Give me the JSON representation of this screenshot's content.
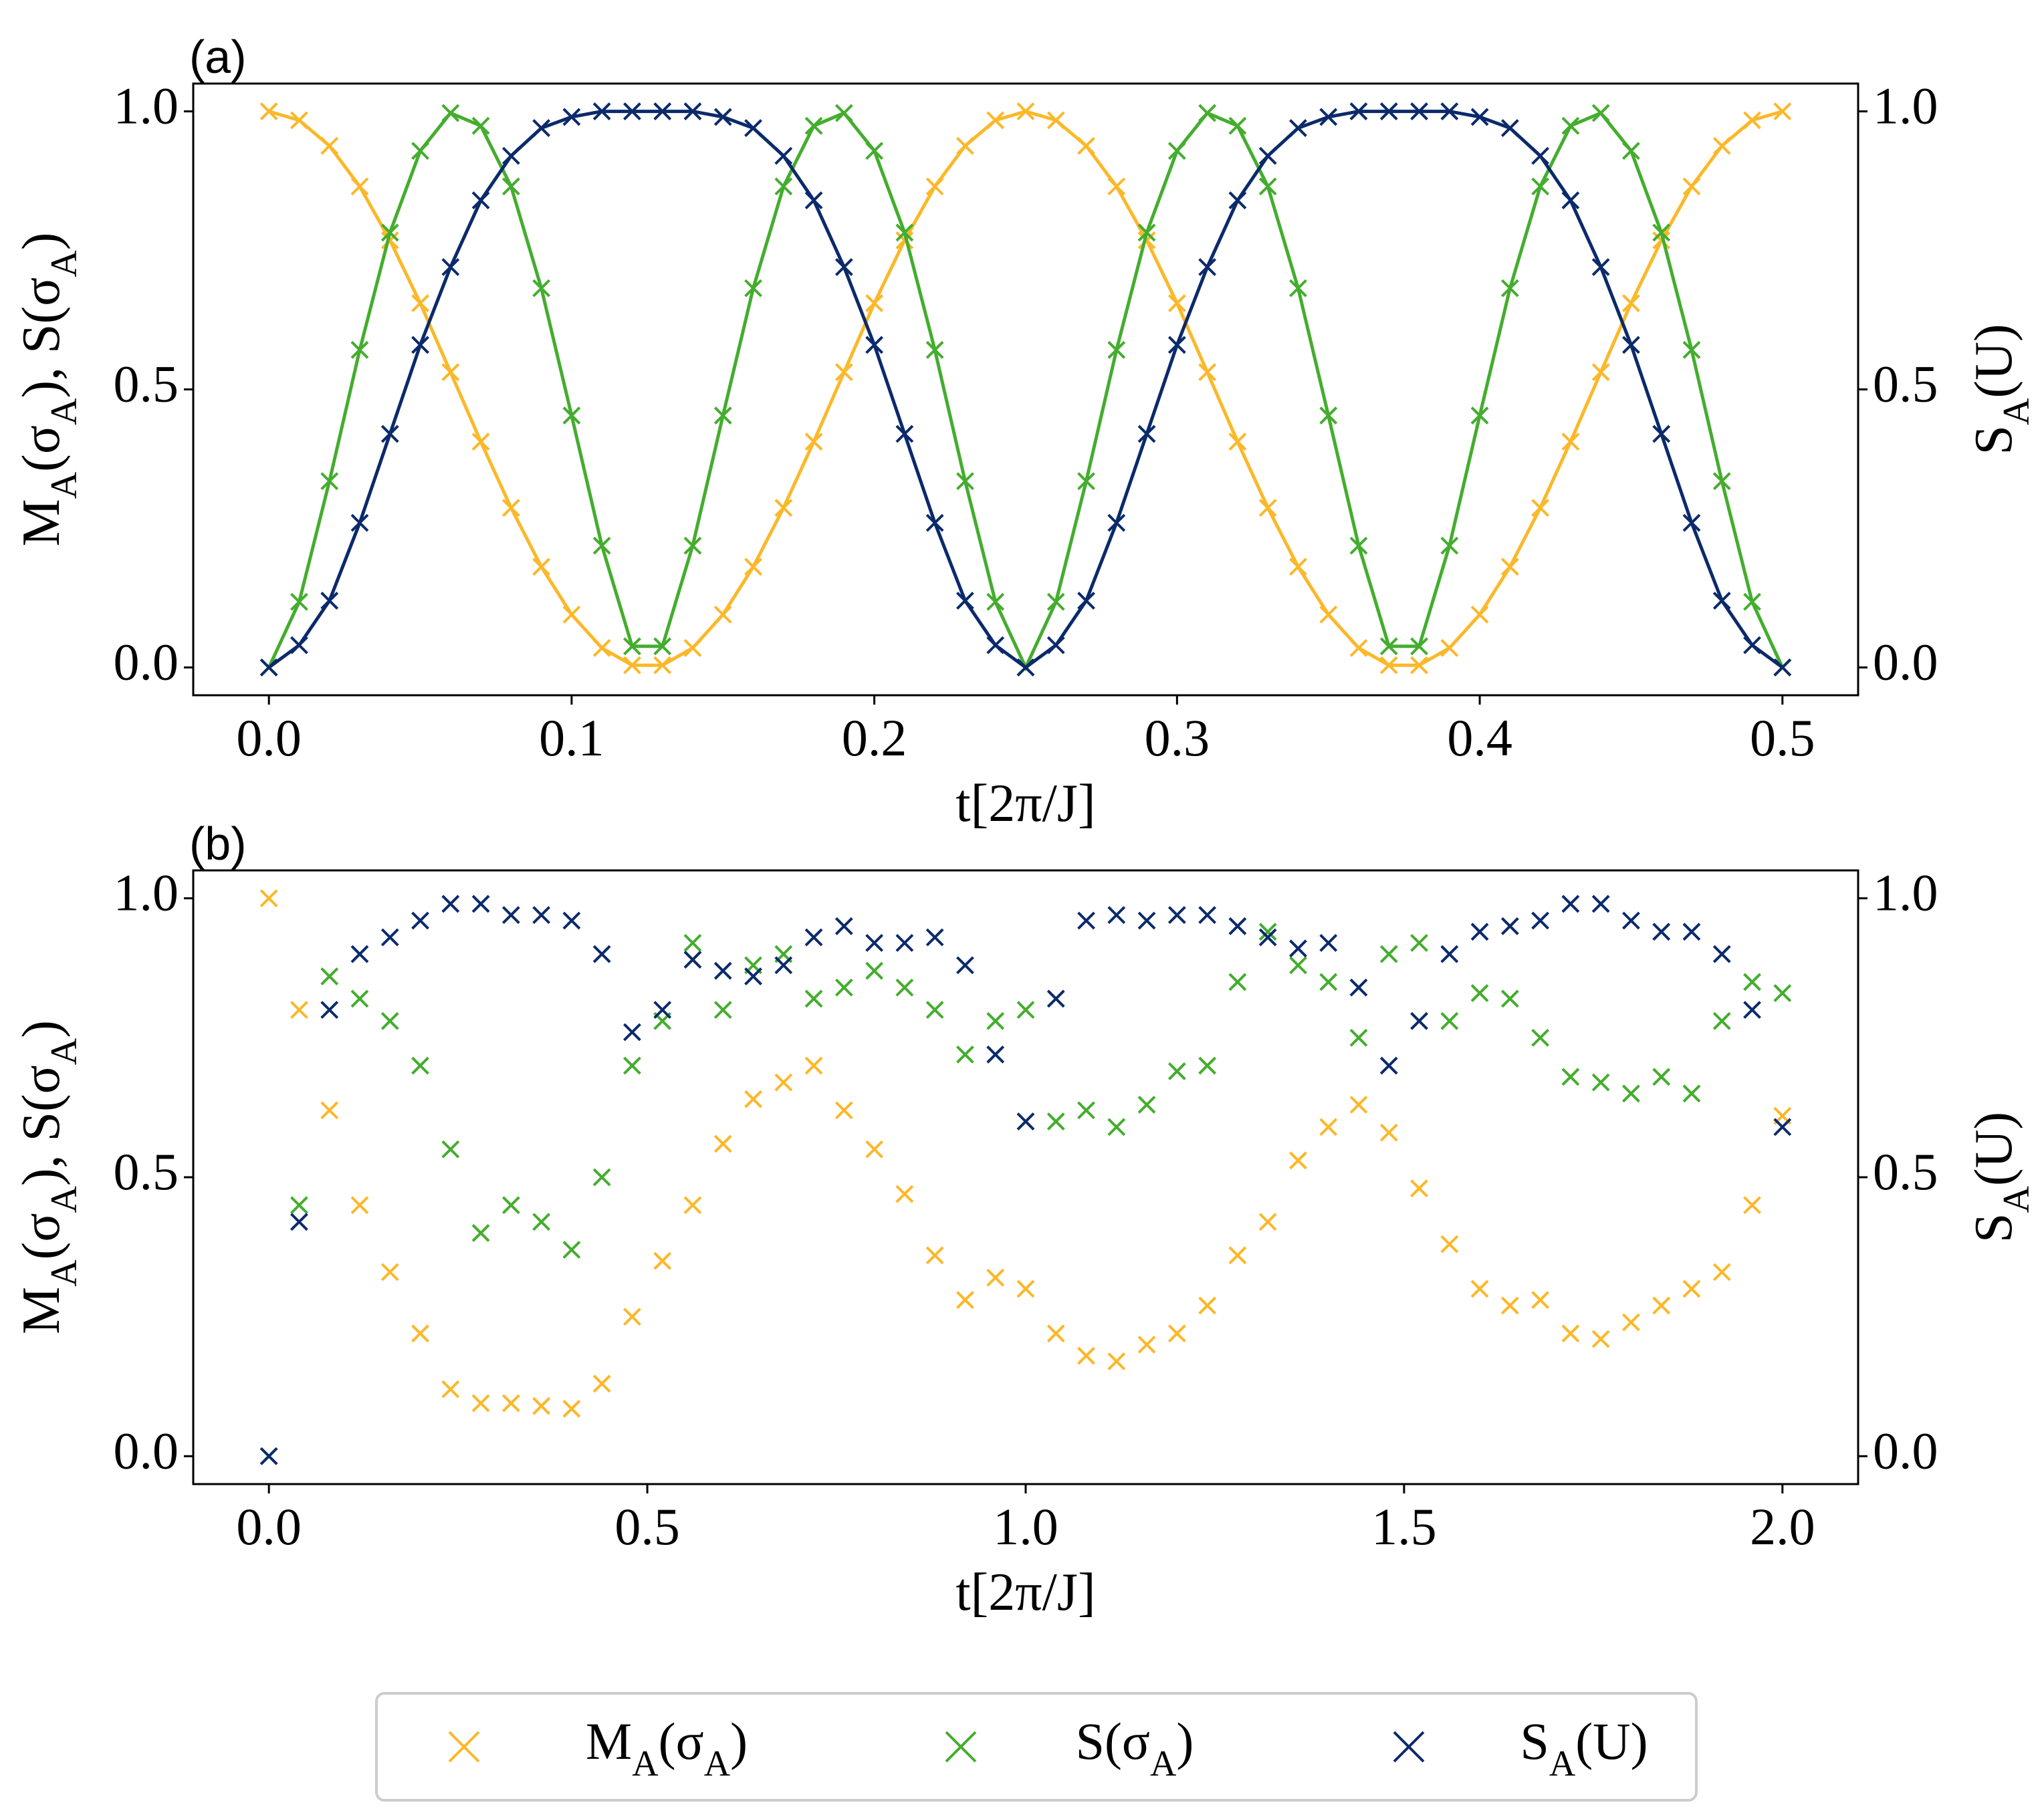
{
  "chart_data": [
    {
      "type": "line",
      "title": "(a)",
      "x_label": "t[2π/J]",
      "y_label": "M_A(σ_A), S(σ_A)",
      "y2_label": "S_A(U)",
      "legend": "below",
      "x": [
        0,
        0.01,
        0.02,
        0.03,
        0.04,
        0.05,
        0.06,
        0.07,
        0.08,
        0.09,
        0.1,
        0.11,
        0.12,
        0.13,
        0.14,
        0.15,
        0.16,
        0.17,
        0.18,
        0.19,
        0.2,
        0.21,
        0.22,
        0.23,
        0.24,
        0.25,
        0.26,
        0.27,
        0.28,
        0.29,
        0.3,
        0.31,
        0.32,
        0.33,
        0.34,
        0.35,
        0.36,
        0.37,
        0.38,
        0.39,
        0.4,
        0.41,
        0.42,
        0.43,
        0.44,
        0.45,
        0.46,
        0.47,
        0.48,
        0.49,
        0.5
      ],
      "xlim": [
        -0.025,
        0.525
      ],
      "xticks": [
        {
          "value": 0,
          "label": "0.0"
        },
        0.1,
        0.2,
        0.3,
        0.4,
        0.5
      ],
      "ylim": [
        -0.05,
        1.05
      ],
      "yticks": [
        {
          "value": 0,
          "label": "0.0"
        },
        0.5,
        {
          "value": 1,
          "label": "1.0"
        }
      ],
      "y2lim": [
        -0.05,
        1.05
      ],
      "y2ticks": [
        {
          "value": 0,
          "label": "0.0"
        },
        0.5,
        {
          "value": 1,
          "label": "1.0"
        }
      ],
      "series": [
        {
          "name": "M_A(σ_A)",
          "color": "#fbb829",
          "values": [
            1,
            0.984,
            0.938,
            0.865,
            0.768,
            0.655,
            0.531,
            0.406,
            0.287,
            0.181,
            0.095,
            0.035,
            0.004,
            0.004,
            0.035,
            0.095,
            0.181,
            0.287,
            0.406,
            0.531,
            0.655,
            0.768,
            0.865,
            0.938,
            0.984,
            1,
            0.984,
            0.938,
            0.865,
            0.768,
            0.655,
            0.531,
            0.406,
            0.287,
            0.181,
            0.095,
            0.035,
            0.004,
            0.004,
            0.035,
            0.095,
            0.181,
            0.287,
            0.406,
            0.531,
            0.655,
            0.768,
            0.865,
            0.938,
            0.984,
            1
          ]
        },
        {
          "name": "S(σ_A)",
          "color": "#44ad2e",
          "values": [
            0,
            0.118,
            0.335,
            0.571,
            0.782,
            0.929,
            0.997,
            0.974,
            0.865,
            0.682,
            0.453,
            0.219,
            0.038,
            0.038,
            0.219,
            0.453,
            0.682,
            0.865,
            0.974,
            0.997,
            0.929,
            0.782,
            0.571,
            0.335,
            0.118,
            0,
            0.118,
            0.335,
            0.571,
            0.782,
            0.929,
            0.997,
            0.974,
            0.865,
            0.682,
            0.453,
            0.219,
            0.038,
            0.038,
            0.219,
            0.453,
            0.682,
            0.865,
            0.974,
            0.997,
            0.929,
            0.782,
            0.571,
            0.335,
            0.118,
            0
          ]
        },
        {
          "name": "S_A(U)",
          "color": "#0b2a6b",
          "axis": "y2",
          "values": [
            0,
            0.04,
            0.12,
            0.26,
            0.42,
            0.58,
            0.72,
            0.84,
            0.92,
            0.97,
            0.99,
            1,
            1,
            1,
            1,
            0.99,
            0.97,
            0.92,
            0.84,
            0.72,
            0.58,
            0.42,
            0.26,
            0.12,
            0.04,
            0,
            0.04,
            0.12,
            0.26,
            0.42,
            0.58,
            0.72,
            0.84,
            0.92,
            0.97,
            0.99,
            1,
            1,
            1,
            1,
            0.99,
            0.97,
            0.92,
            0.84,
            0.72,
            0.58,
            0.42,
            0.26,
            0.12,
            0.04,
            0
          ]
        }
      ]
    },
    {
      "type": "scatter",
      "title": "(b)",
      "x_label": "t[2π/J]",
      "y_label": "M_A(σ_A), S(σ_A)",
      "y2_label": "S_A(U)",
      "x": [
        0,
        0.04,
        0.08,
        0.12,
        0.16,
        0.2,
        0.24,
        0.28,
        0.32,
        0.36,
        0.4,
        0.44,
        0.48,
        0.52,
        0.56,
        0.6,
        0.64,
        0.68,
        0.72,
        0.76,
        0.8,
        0.84,
        0.88,
        0.92,
        0.96,
        1,
        1.04,
        1.08,
        1.12,
        1.16,
        1.2,
        1.24,
        1.28,
        1.32,
        1.36,
        1.4,
        1.44,
        1.48,
        1.52,
        1.56,
        1.6,
        1.64,
        1.68,
        1.72,
        1.76,
        1.8,
        1.84,
        1.88,
        1.92,
        1.96,
        2
      ],
      "xlim": [
        -0.1,
        2.1
      ],
      "xticks": [
        {
          "value": 0,
          "label": "0.0"
        },
        0.5,
        {
          "value": 1,
          "label": "1.0"
        },
        1.5,
        {
          "value": 2,
          "label": "2.0"
        }
      ],
      "ylim": [
        -0.05,
        1.05
      ],
      "yticks": [
        {
          "value": 0,
          "label": "0.0"
        },
        0.5,
        {
          "value": 1,
          "label": "1.0"
        }
      ],
      "y2lim": [
        -0.05,
        1.05
      ],
      "y2ticks": [
        {
          "value": 0,
          "label": "0.0"
        },
        0.5,
        {
          "value": 1,
          "label": "1.0"
        }
      ],
      "series": [
        {
          "name": "M_A(σ_A)",
          "color": "#fbb829",
          "values": [
            1,
            0.8,
            0.62,
            0.45,
            0.33,
            0.22,
            0.12,
            0.095,
            0.095,
            0.09,
            0.085,
            0.13,
            0.25,
            0.35,
            0.45,
            0.56,
            0.64,
            0.67,
            0.7,
            0.62,
            0.55,
            0.47,
            0.36,
            0.28,
            0.32,
            0.3,
            0.22,
            0.18,
            0.17,
            0.2,
            0.22,
            0.27,
            0.36,
            0.42,
            0.53,
            0.59,
            0.63,
            0.58,
            0.48,
            0.38,
            0.3,
            0.27,
            0.28,
            0.22,
            0.21,
            0.24,
            0.27,
            0.3,
            0.33,
            0.45,
            0.61
          ]
        },
        {
          "name": "S(σ_A)",
          "color": "#44ad2e",
          "values": [
            0,
            0.45,
            0.86,
            0.82,
            0.78,
            0.7,
            0.55,
            0.4,
            0.45,
            0.42,
            0.37,
            0.5,
            0.7,
            0.78,
            0.92,
            0.8,
            0.88,
            0.9,
            0.82,
            0.84,
            0.87,
            0.84,
            0.8,
            0.72,
            0.78,
            0.8,
            0.6,
            0.62,
            0.59,
            0.63,
            0.69,
            0.7,
            0.85,
            0.94,
            0.88,
            0.85,
            0.75,
            0.9,
            0.92,
            0.78,
            0.83,
            0.82,
            0.75,
            0.68,
            0.67,
            0.65,
            0.68,
            0.65,
            0.78,
            0.85,
            0.83
          ]
        },
        {
          "name": "S_A(U)",
          "color": "#0b2a6b",
          "axis": "y2",
          "values": [
            0,
            0.42,
            0.8,
            0.9,
            0.93,
            0.96,
            0.99,
            0.99,
            0.97,
            0.97,
            0.96,
            0.9,
            0.76,
            0.8,
            0.89,
            0.87,
            0.86,
            0.88,
            0.93,
            0.95,
            0.92,
            0.92,
            0.93,
            0.88,
            0.72,
            0.6,
            0.82,
            0.96,
            0.97,
            0.96,
            0.97,
            0.97,
            0.95,
            0.93,
            0.91,
            0.92,
            0.84,
            0.7,
            0.78,
            0.9,
            0.94,
            0.95,
            0.96,
            0.99,
            0.99,
            0.96,
            0.94,
            0.94,
            0.9,
            0.8,
            0.59
          ]
        }
      ]
    }
  ]
}
